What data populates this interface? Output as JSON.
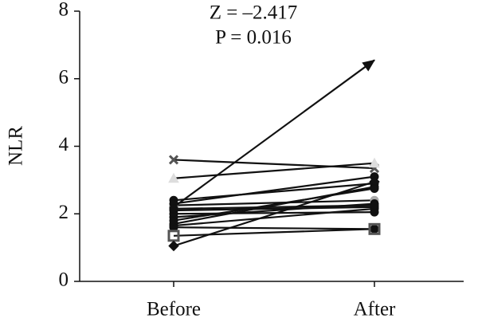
{
  "chart_data": {
    "type": "line",
    "y_label": "NLR",
    "annotations": [
      "Z = –2.417",
      "P = 0.016"
    ],
    "categories": [
      "Before",
      "After"
    ],
    "ylim": [
      0,
      8
    ],
    "yticks": [
      0,
      2,
      4,
      6,
      8
    ],
    "series": [
      {
        "color": "#555555",
        "marker": "x",
        "values": [
          3.6,
          3.35
        ]
      },
      {
        "color": "#dddddd",
        "marker": "triangle",
        "values": [
          3.05,
          3.5
        ]
      },
      {
        "color": "#111111",
        "marker": "arrow",
        "values": [
          2.2,
          6.55
        ]
      },
      {
        "color": "#aaaaaa",
        "marker": "circle",
        "values": [
          2.25,
          2.4
        ]
      },
      {
        "color": "#111111",
        "marker": "circle",
        "values": [
          2.4,
          2.9
        ]
      },
      {
        "color": "#111111",
        "marker": "circle",
        "values": [
          2.3,
          3.1
        ]
      },
      {
        "color": "#111111",
        "marker": "circle",
        "values": [
          2.1,
          2.2
        ]
      },
      {
        "color": "#111111",
        "marker": "circle",
        "values": [
          2.0,
          2.05
        ]
      },
      {
        "color": "#111111",
        "marker": "circle",
        "values": [
          1.9,
          2.3
        ]
      },
      {
        "color": "#111111",
        "marker": "circle",
        "values": [
          1.7,
          2.8
        ]
      },
      {
        "color": "#111111",
        "marker": "circle",
        "values": [
          1.65,
          2.15
        ]
      },
      {
        "color": "#111111",
        "marker": "circle",
        "values": [
          1.6,
          1.55
        ]
      },
      {
        "color": "#555555",
        "marker": "square",
        "values": [
          1.35,
          1.55
        ]
      },
      {
        "color": "#111111",
        "marker": "diamond",
        "values": [
          1.05,
          2.95
        ]
      },
      {
        "color": "#111111",
        "marker": "circle",
        "values": [
          1.8,
          2.75
        ]
      },
      {
        "color": "#111111",
        "marker": "circle",
        "values": [
          2.15,
          2.25
        ]
      }
    ]
  }
}
